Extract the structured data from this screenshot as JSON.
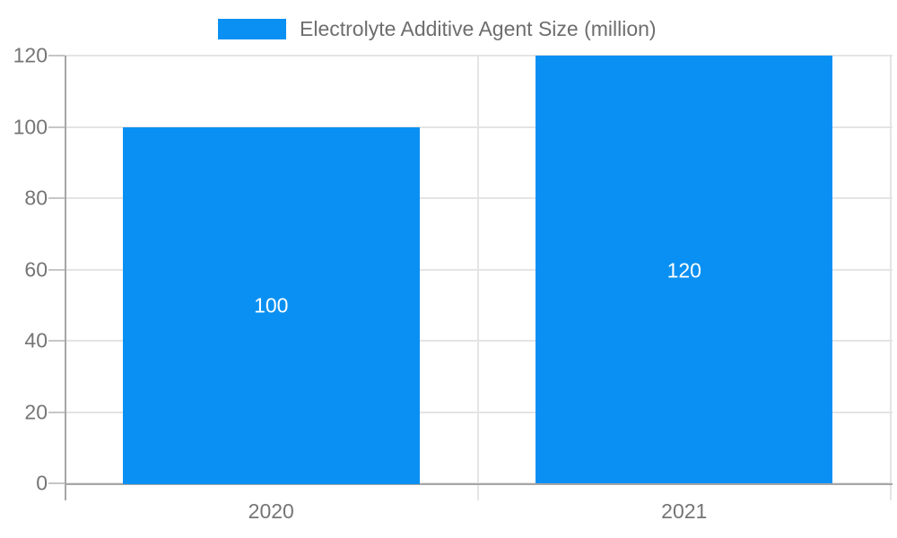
{
  "legend": {
    "label": "Electrolyte Additive Agent Size (million)"
  },
  "chart_data": {
    "type": "bar",
    "title": "Electrolyte Additive Agent Size (million)",
    "categories": [
      "2020",
      "2021"
    ],
    "values": [
      100,
      120
    ],
    "bar_labels": [
      "100",
      "120"
    ],
    "xlabel": "",
    "ylabel": "",
    "ylim": [
      0,
      120
    ],
    "yticks": [
      0,
      20,
      40,
      60,
      80,
      100,
      120
    ],
    "grid": true,
    "legend_position": "top-center",
    "colors": {
      "bar": "#0a90f2",
      "grid": "#e4e4e4",
      "tick_stub": "#c6c6c6",
      "axis": "#a6a6a6",
      "tick_label": "#757575",
      "legend_text": "#6e6e6e",
      "bar_label": "#ffffff",
      "background": "#ffffff"
    }
  }
}
